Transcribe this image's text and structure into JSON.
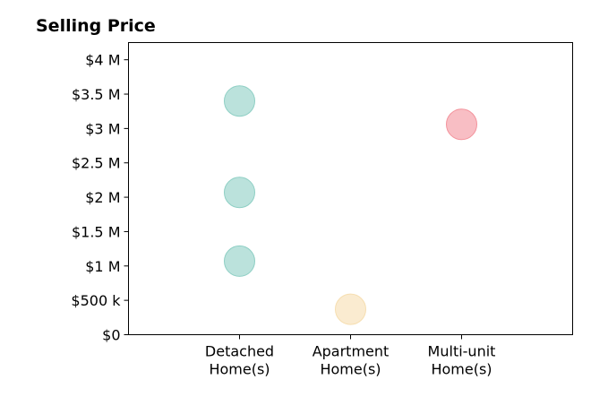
{
  "chart_data": {
    "type": "scatter",
    "title": "Selling Price",
    "xlabel": "",
    "ylabel": "",
    "categories": [
      [
        "Detached",
        "Home(s)"
      ],
      [
        "Apartment",
        "Home(s)"
      ],
      [
        "Multi-unit",
        "Home(s)"
      ]
    ],
    "x_range": [
      -1,
      3
    ],
    "ylim": [
      0,
      4250000
    ],
    "y_ticks": [
      0,
      500000,
      1000000,
      1500000,
      2000000,
      2500000,
      3000000,
      3500000,
      4000000
    ],
    "y_tick_labels": [
      "$0",
      "$500 k",
      "$1 M",
      "$1.5 M",
      "$2 M",
      "$2.5 M",
      "$3 M",
      "$3.5 M",
      "$4 M"
    ],
    "grid": false,
    "legend": "none",
    "points": [
      {
        "category": 0,
        "y": 3400000,
        "color": "#8ecfc4"
      },
      {
        "category": 0,
        "y": 2070000,
        "color": "#8ecfc4"
      },
      {
        "category": 0,
        "y": 1070000,
        "color": "#8ecfc4"
      },
      {
        "category": 1,
        "y": 370000,
        "color": "#f6deb0"
      },
      {
        "category": 2,
        "y": 3060000,
        "color": "#f3939c"
      }
    ],
    "marker_opacity": 0.6
  }
}
